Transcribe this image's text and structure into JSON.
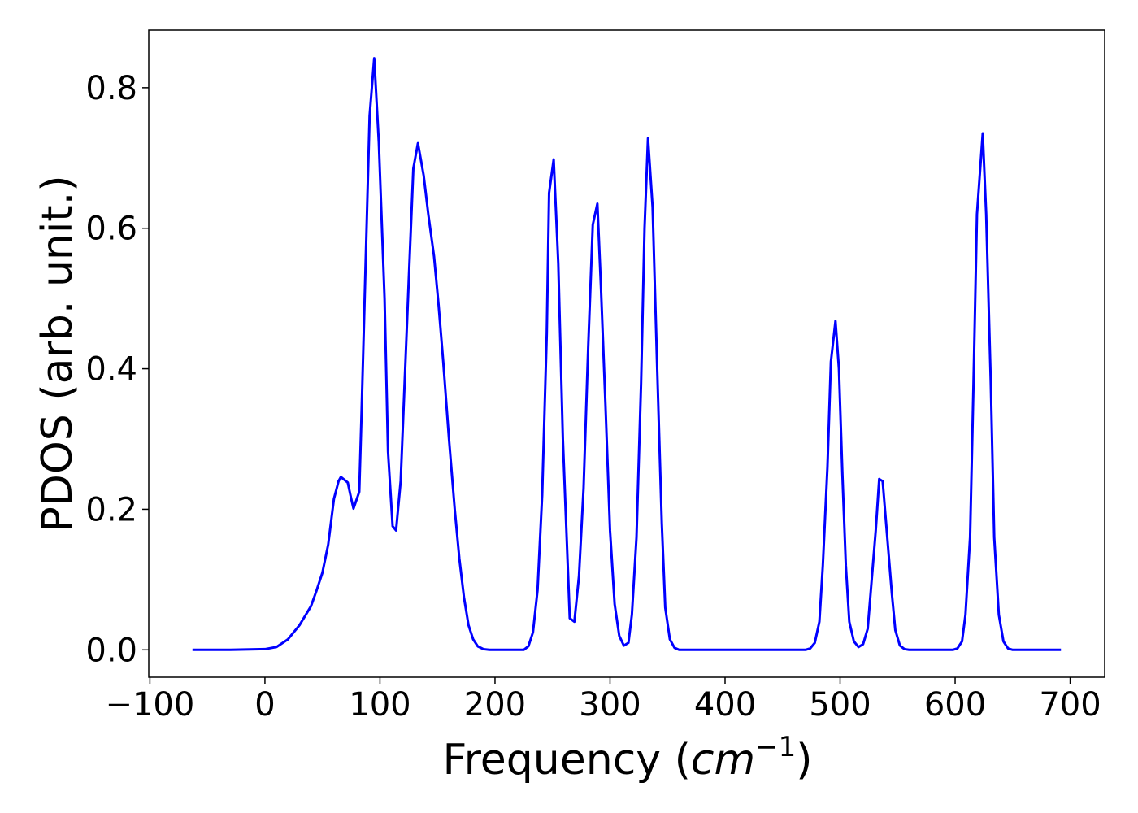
{
  "chart_data": {
    "type": "line",
    "ylabel": "PDOS (arb. unit.)",
    "xlabel": {
      "text": "Frequency (",
      "math": "cm",
      "sup": "−1",
      "close": ")"
    },
    "xlim": [
      -101,
      730
    ],
    "ylim": [
      -0.039,
      0.882
    ],
    "xticks": [
      {
        "value": -100,
        "label": "−100"
      },
      0,
      100,
      200,
      300,
      400,
      500,
      600,
      700
    ],
    "yticks": [
      {
        "value": 0,
        "label": "0.0"
      },
      {
        "value": 0.2,
        "label": "0.2"
      },
      {
        "value": 0.4,
        "label": "0.4"
      },
      {
        "value": 0.6,
        "label": "0.6"
      },
      {
        "value": 0.8,
        "label": "0.8"
      }
    ],
    "grid": false,
    "series": [
      {
        "name": "PDOS",
        "color": "#0000ff",
        "x": [
          -63,
          -30,
          0,
          10,
          20,
          30,
          40,
          45,
          50,
          55,
          60,
          64,
          66,
          72,
          75,
          77,
          82,
          84,
          91,
          95,
          99,
          104,
          107,
          111,
          114,
          118,
          125,
          129,
          133,
          138,
          142,
          147,
          151,
          155,
          160,
          165,
          169,
          173,
          177,
          181,
          185,
          190,
          195,
          225,
          229,
          233,
          237,
          241,
          245,
          247,
          251,
          255,
          259,
          263,
          265,
          269,
          273,
          277,
          281,
          285,
          289,
          292,
          296,
          300,
          304,
          308,
          312,
          316,
          319,
          323,
          327,
          330,
          333,
          337,
          341,
          345,
          348,
          352,
          356,
          360,
          470,
          474,
          478,
          482,
          485,
          489,
          492,
          496,
          499,
          502,
          505,
          508,
          512,
          516,
          520,
          524,
          527,
          531,
          534,
          537,
          541,
          545,
          548,
          552,
          556,
          560,
          565,
          598,
          602,
          606,
          609,
          613,
          616,
          619,
          624,
          627,
          631,
          634,
          638,
          642,
          646,
          650,
          692
        ],
        "values": [
          0,
          0,
          0.001,
          0.004,
          0.015,
          0.035,
          0.062,
          0.085,
          0.11,
          0.15,
          0.215,
          0.24,
          0.246,
          0.238,
          0.215,
          0.201,
          0.225,
          0.337,
          0.76,
          0.842,
          0.722,
          0.5,
          0.282,
          0.176,
          0.17,
          0.24,
          0.525,
          0.685,
          0.721,
          0.675,
          0.62,
          0.56,
          0.49,
          0.41,
          0.3,
          0.2,
          0.13,
          0.075,
          0.035,
          0.015,
          0.005,
          0.001,
          0,
          0,
          0.005,
          0.025,
          0.085,
          0.22,
          0.45,
          0.65,
          0.698,
          0.55,
          0.3,
          0.13,
          0.045,
          0.04,
          0.105,
          0.23,
          0.43,
          0.605,
          0.635,
          0.52,
          0.35,
          0.17,
          0.065,
          0.02,
          0.006,
          0.01,
          0.05,
          0.16,
          0.38,
          0.6,
          0.728,
          0.63,
          0.4,
          0.18,
          0.06,
          0.015,
          0.003,
          0,
          0,
          0.002,
          0.01,
          0.04,
          0.12,
          0.26,
          0.41,
          0.468,
          0.4,
          0.25,
          0.12,
          0.04,
          0.012,
          0.004,
          0.008,
          0.03,
          0.09,
          0.17,
          0.243,
          0.24,
          0.16,
          0.08,
          0.028,
          0.006,
          0.001,
          0,
          0,
          0,
          0.002,
          0.012,
          0.05,
          0.16,
          0.38,
          0.62,
          0.735,
          0.62,
          0.38,
          0.16,
          0.05,
          0.012,
          0.002,
          0,
          0
        ]
      }
    ]
  }
}
